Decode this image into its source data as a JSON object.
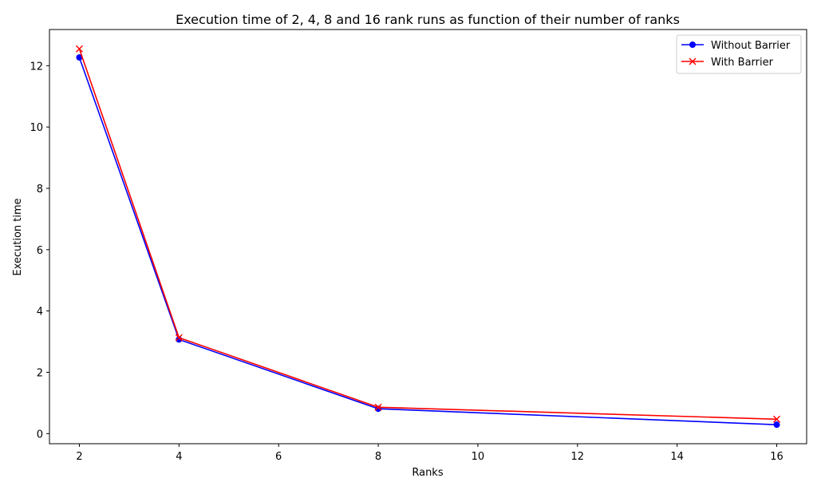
{
  "chart_data": {
    "type": "line",
    "title": "Execution time of 2, 4, 8 and 16 rank runs as function of their number of ranks",
    "xlabel": "Ranks",
    "ylabel": "Execution time",
    "xlim": [
      1.4,
      16.6
    ],
    "ylim": [
      -0.33,
      13.18
    ],
    "xticks": [
      2,
      4,
      6,
      8,
      10,
      12,
      14,
      16
    ],
    "yticks": [
      0,
      2,
      4,
      6,
      8,
      10,
      12
    ],
    "grid": false,
    "legend_position": "top-right",
    "series": [
      {
        "name": "Without Barrier",
        "color": "#0000ff",
        "marker": "circle",
        "x": [
          2,
          4,
          8,
          16
        ],
        "y": [
          12.27,
          3.07,
          0.81,
          0.29
        ]
      },
      {
        "name": "With Barrier",
        "color": "#ff0000",
        "marker": "x",
        "x": [
          2,
          4,
          8,
          16
        ],
        "y": [
          12.55,
          3.13,
          0.86,
          0.47
        ]
      }
    ]
  }
}
